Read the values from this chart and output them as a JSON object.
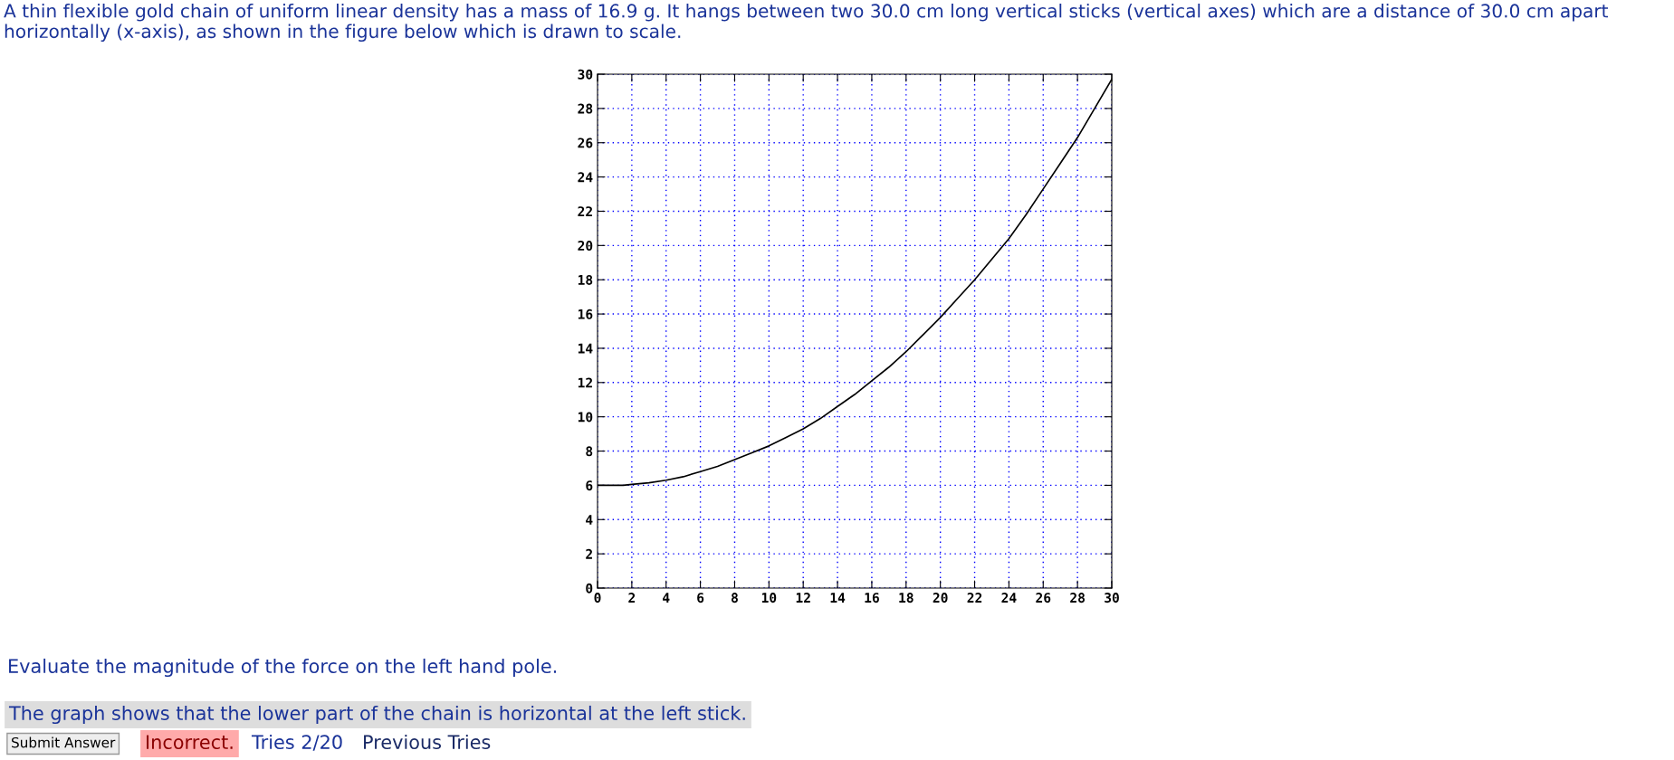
{
  "chart_data": {
    "type": "line",
    "title": "A thin flexible gold chain of uniform linear density has a mass of 16.9 g. It hangs between two 30.0 cm long vertical sticks (vertical axes) which are a distance of 30.0 cm apart horizontally (x-axis), as shown in the figure below which is drawn to scale.",
    "x": [
      0,
      1.5,
      2,
      3,
      4,
      5,
      6,
      7,
      8,
      9,
      10,
      11,
      12,
      13,
      14,
      15,
      16,
      17,
      18,
      19,
      20,
      21,
      22,
      23,
      24,
      25,
      26,
      27,
      28,
      29,
      30
    ],
    "series": [
      {
        "color": "#000000",
        "values": [
          6,
          6,
          6.05,
          6.15,
          6.3,
          6.5,
          6.8,
          7.1,
          7.5,
          7.9,
          8.3,
          8.8,
          9.3,
          9.9,
          10.6,
          11.3,
          12.1,
          12.9,
          13.8,
          14.8,
          15.8,
          16.9,
          18.0,
          19.2,
          20.4,
          21.8,
          23.3,
          24.8,
          26.3,
          28.0,
          29.7
        ]
      }
    ],
    "xlim": [
      0,
      30
    ],
    "ylim": [
      0,
      30
    ],
    "xticks": [
      0,
      2,
      4,
      6,
      8,
      10,
      12,
      14,
      16,
      18,
      20,
      22,
      24,
      26,
      28,
      30
    ],
    "yticks": [
      0,
      2,
      4,
      6,
      8,
      10,
      12,
      14,
      16,
      18,
      20,
      22,
      24,
      26,
      28,
      30
    ],
    "grid": true,
    "marker": "none",
    "line_style": "solid",
    "annotations": [
      "Evaluate the magnitude of the force on the left hand pole.",
      "The graph shows that the lower part of the chain is horizontal at the left stick.",
      "Submit Answer",
      "Incorrect.",
      "Tries 2/20",
      "Previous Tries"
    ]
  }
}
